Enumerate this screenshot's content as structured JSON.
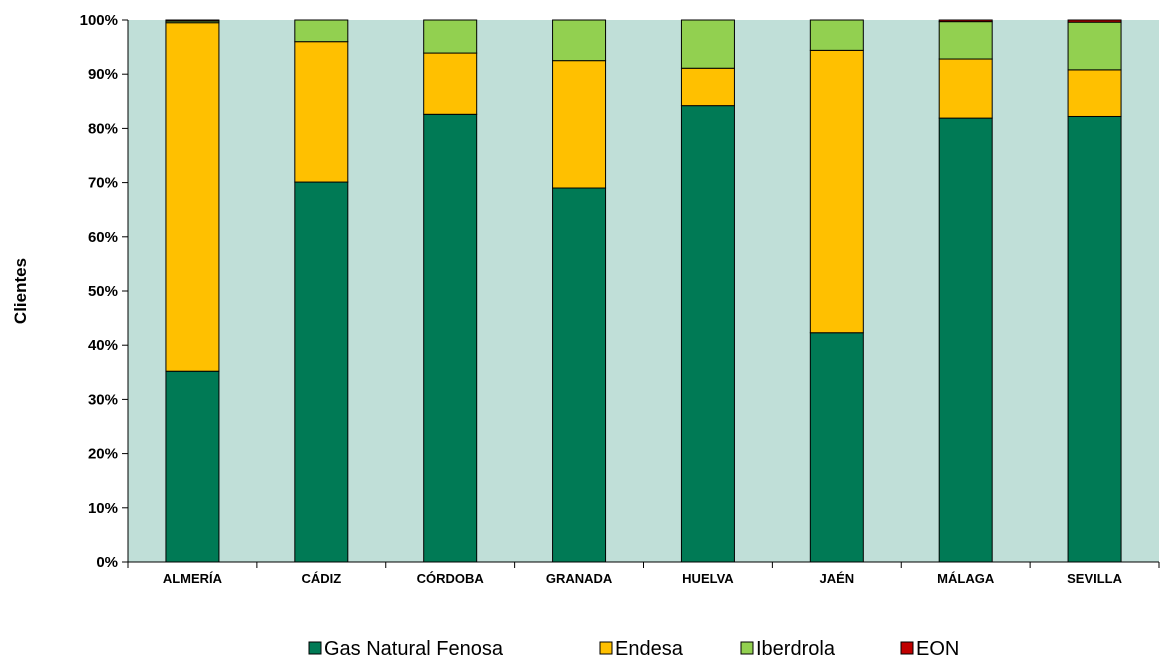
{
  "chart_data": {
    "type": "bar",
    "stacked": true,
    "percent": true,
    "categories": [
      "ALMERÍA",
      "CÁDIZ",
      "CÓRDOBA",
      "GRANADA",
      "HUELVA",
      "JAÉN",
      "MÁLAGA",
      "SEVILLA"
    ],
    "series": [
      {
        "name": "Gas Natural Fenosa",
        "color": "#007a55",
        "values": [
          35.2,
          70.1,
          82.6,
          69.0,
          84.2,
          42.3,
          81.9,
          82.2
        ]
      },
      {
        "name": "Endesa",
        "color": "#ffc000",
        "values": [
          64.3,
          25.9,
          11.3,
          23.5,
          6.9,
          52.1,
          10.9,
          8.6
        ]
      },
      {
        "name": "Iberdrola",
        "color": "#92d050",
        "values": [
          0.3,
          4.0,
          6.1,
          7.5,
          8.9,
          5.6,
          6.9,
          8.8
        ]
      },
      {
        "name": "EON",
        "color": "#c00000",
        "values": [
          0.2,
          0.0,
          0.0,
          0.0,
          0.0,
          0.0,
          0.3,
          0.4
        ]
      }
    ],
    "title": "",
    "xlabel": "",
    "ylabel": "Clientes",
    "ylim": [
      0,
      100
    ],
    "yticks": [
      "0%",
      "10%",
      "20%",
      "30%",
      "40%",
      "50%",
      "60%",
      "70%",
      "80%",
      "90%",
      "100%"
    ],
    "plot_background": "#c0dfd8",
    "grid": false,
    "legend_position": "bottom"
  }
}
